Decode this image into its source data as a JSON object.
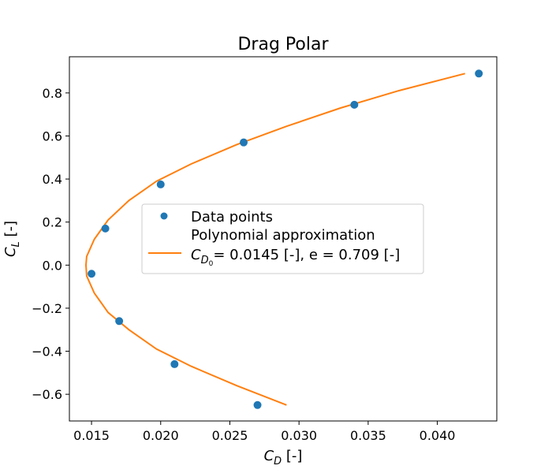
{
  "chart_data": {
    "type": "scatter",
    "title": "Drag Polar",
    "xlabel": {
      "main": "C",
      "sub": "D",
      "unit": " [-]"
    },
    "ylabel": {
      "main": "C",
      "sub": "L",
      "unit": " [-]"
    },
    "xlim": [
      0.0134,
      0.0443
    ],
    "ylim": [
      -0.724,
      0.968
    ],
    "xticks": [
      0.015,
      0.02,
      0.025,
      0.03,
      0.035,
      0.04
    ],
    "xtick_labels": [
      "0.015",
      "0.020",
      "0.025",
      "0.030",
      "0.035",
      "0.040"
    ],
    "yticks": [
      -0.6,
      -0.4,
      -0.2,
      0.0,
      0.2,
      0.4,
      0.6,
      0.8
    ],
    "ytick_labels": [
      "−0.6",
      "−0.4",
      "−0.2",
      "0.0",
      "0.2",
      "0.4",
      "0.6",
      "0.8"
    ],
    "grid": false,
    "legend_position": "center",
    "series": [
      {
        "name": "Data points",
        "kind": "scatter",
        "color": "#1f77b4",
        "x": [
          0.027,
          0.021,
          0.017,
          0.015,
          0.016,
          0.02,
          0.026,
          0.034,
          0.043
        ],
        "y": [
          -0.65,
          -0.46,
          -0.26,
          -0.04,
          0.17,
          0.375,
          0.57,
          0.745,
          0.89
        ]
      },
      {
        "name": "Polynomial approximation",
        "kind": "line",
        "color": "#ff7f0e",
        "x": [
          0.0291,
          0.0255,
          0.0222,
          0.0197,
          0.0177,
          0.0162,
          0.0152,
          0.01465,
          0.0146,
          0.01465,
          0.0152,
          0.0162,
          0.0177,
          0.0197,
          0.0222,
          0.0255,
          0.0291,
          0.033,
          0.0372,
          0.042
        ],
        "y": [
          -0.65,
          -0.56,
          -0.47,
          -0.39,
          -0.3,
          -0.22,
          -0.13,
          -0.05,
          0.0,
          0.04,
          0.12,
          0.21,
          0.3,
          0.39,
          0.47,
          0.56,
          0.645,
          0.73,
          0.81,
          0.89
        ]
      }
    ],
    "legend_extra": {
      "line1": "Polynomial approximation",
      "line2_prefix": "C",
      "line2_sub": "D",
      "line2_subsub": "0",
      "line2_rest": "= 0.0145 [-], e = 0.709 [-]"
    }
  }
}
